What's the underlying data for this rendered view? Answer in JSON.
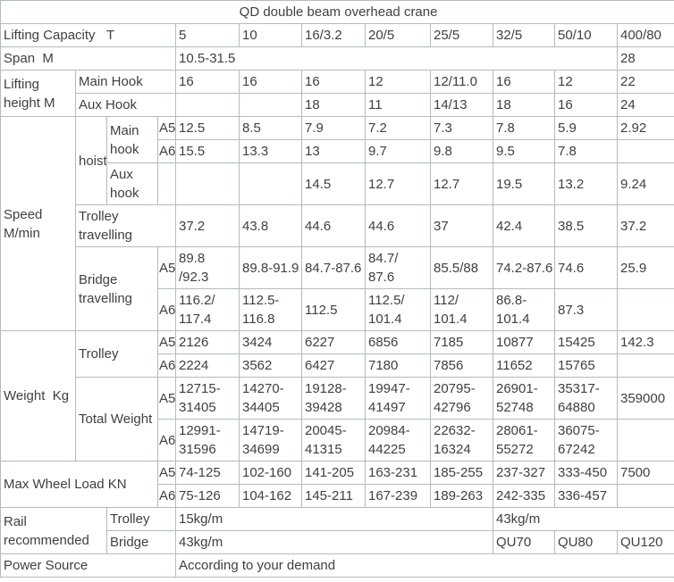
{
  "colors": {
    "border": "#b2bac2",
    "text": "#3f3f3f",
    "background": "#ffffff"
  },
  "table": {
    "title": "QD double beam overhead crane",
    "rows": [
      {
        "cells": [
          {
            "t": "QD double beam overhead crane",
            "cs": 12,
            "cls": "c",
            "n": "table-title"
          }
        ]
      },
      {
        "cells": [
          {
            "t": "Lifting Capacity   T",
            "cs": 4,
            "n": "row-label-lifting-capacity"
          },
          {
            "t": "5"
          },
          {
            "t": "10"
          },
          {
            "t": "16/3.2"
          },
          {
            "t": "20/5"
          },
          {
            "t": "25/5"
          },
          {
            "t": "32/5"
          },
          {
            "t": "50/10"
          },
          {
            "t": "400/80"
          }
        ]
      },
      {
        "cells": [
          {
            "t": "Span  M",
            "cs": 4,
            "n": "row-label-span"
          },
          {
            "t": "10.5-31.5",
            "cs": 7
          },
          {
            "t": "28"
          }
        ]
      },
      {
        "cells": [
          {
            "t": "Lifting\nheight M",
            "rs": 2,
            "n": "row-label-lifting-height"
          },
          {
            "t": "Main Hook",
            "cs": 3,
            "n": "row-label-main-hook"
          },
          {
            "t": "16"
          },
          {
            "t": "16"
          },
          {
            "t": "16"
          },
          {
            "t": "12"
          },
          {
            "t": "12/11.0"
          },
          {
            "t": "16"
          },
          {
            "t": "12"
          },
          {
            "t": "22"
          }
        ]
      },
      {
        "cells": [
          {
            "t": "Aux Hook",
            "cs": 3,
            "n": "row-label-aux-hook"
          },
          {
            "t": ""
          },
          {
            "t": ""
          },
          {
            "t": "18"
          },
          {
            "t": "11"
          },
          {
            "t": "14/13"
          },
          {
            "t": "18"
          },
          {
            "t": "16"
          },
          {
            "t": "24"
          }
        ]
      },
      {
        "cells": [
          {
            "t": "Speed\nM/min",
            "rs": 6,
            "n": "row-label-speed"
          },
          {
            "t": "hoist",
            "rs": 3,
            "n": "row-label-hoist"
          },
          {
            "t": "Main\nhook",
            "rs": 2,
            "n": "row-label-hoist-main-hook"
          },
          {
            "t": "A5",
            "cls": "g",
            "n": "grade-label"
          },
          {
            "t": "12.5"
          },
          {
            "t": "8.5"
          },
          {
            "t": "7.9"
          },
          {
            "t": "7.2"
          },
          {
            "t": "7.3"
          },
          {
            "t": "7.8"
          },
          {
            "t": "5.9"
          },
          {
            "t": "2.92"
          }
        ]
      },
      {
        "cells": [
          {
            "t": "A6",
            "cls": "g",
            "n": "grade-label"
          },
          {
            "t": "15.5"
          },
          {
            "t": "13.3"
          },
          {
            "t": "13"
          },
          {
            "t": "9.7"
          },
          {
            "t": "9.8"
          },
          {
            "t": "9.5"
          },
          {
            "t": "7.8"
          },
          {
            "t": ""
          }
        ]
      },
      {
        "cells": [
          {
            "t": "Aux\nhook",
            "n": "row-label-hoist-aux-hook"
          },
          {
            "t": "",
            "cls": "g"
          },
          {
            "t": ""
          },
          {
            "t": ""
          },
          {
            "t": "14.5"
          },
          {
            "t": "12.7"
          },
          {
            "t": "12.7"
          },
          {
            "t": "19.5"
          },
          {
            "t": "13.2"
          },
          {
            "t": "9.24"
          }
        ]
      },
      {
        "cells": [
          {
            "t": "Trolley\ntravelling",
            "cs": 3,
            "n": "row-label-trolley-travelling"
          },
          {
            "t": "37.2"
          },
          {
            "t": "43.8"
          },
          {
            "t": "44.6"
          },
          {
            "t": "44.6"
          },
          {
            "t": "37"
          },
          {
            "t": "42.4"
          },
          {
            "t": "38.5"
          },
          {
            "t": "37.2"
          }
        ]
      },
      {
        "cells": [
          {
            "t": "Bridge\ntravelling",
            "cs": 2,
            "rs": 2,
            "n": "row-label-bridge-travelling"
          },
          {
            "t": "A5",
            "cls": "g",
            "n": "grade-label"
          },
          {
            "t": "89.8\n/92.3"
          },
          {
            "t": "89.8-91.9"
          },
          {
            "t": "84.7-87.6"
          },
          {
            "t": "84.7/\n87.6"
          },
          {
            "t": "85.5/88"
          },
          {
            "t": "74.2-87.6"
          },
          {
            "t": "74.6"
          },
          {
            "t": "25.9"
          }
        ]
      },
      {
        "cells": [
          {
            "t": "A6",
            "cls": "g",
            "n": "grade-label"
          },
          {
            "t": "116.2/\n117.4"
          },
          {
            "t": "112.5-\n116.8"
          },
          {
            "t": "112.5"
          },
          {
            "t": "112.5/\n101.4"
          },
          {
            "t": "112/\n101.4"
          },
          {
            "t": "86.8-\n101.4"
          },
          {
            "t": "87.3"
          },
          {
            "t": ""
          }
        ]
      },
      {
        "cells": [
          {
            "t": "Weight  Kg",
            "rs": 4,
            "n": "row-label-weight"
          },
          {
            "t": "Trolley",
            "cs": 2,
            "rs": 2,
            "n": "row-label-weight-trolley"
          },
          {
            "t": "A5",
            "cls": "g",
            "n": "grade-label"
          },
          {
            "t": "2126"
          },
          {
            "t": "3424"
          },
          {
            "t": "6227"
          },
          {
            "t": "6856"
          },
          {
            "t": "7185"
          },
          {
            "t": "10877"
          },
          {
            "t": "15425"
          },
          {
            "t": "142.3"
          }
        ]
      },
      {
        "cells": [
          {
            "t": "A6",
            "cls": "g",
            "n": "grade-label"
          },
          {
            "t": "2224"
          },
          {
            "t": "3562"
          },
          {
            "t": "6427"
          },
          {
            "t": "7180"
          },
          {
            "t": "7856"
          },
          {
            "t": "11652"
          },
          {
            "t": "15765"
          },
          {
            "t": ""
          }
        ]
      },
      {
        "cells": [
          {
            "t": "Total Weight",
            "cs": 2,
            "rs": 2,
            "n": "row-label-total-weight"
          },
          {
            "t": "A5",
            "cls": "g",
            "n": "grade-label"
          },
          {
            "t": "12715-\n31405"
          },
          {
            "t": "14270-\n34405"
          },
          {
            "t": "19128-\n39428"
          },
          {
            "t": "19947-\n41497"
          },
          {
            "t": "20795-\n42796"
          },
          {
            "t": "26901-\n52748"
          },
          {
            "t": "35317-\n64880"
          },
          {
            "t": "359000"
          }
        ]
      },
      {
        "cells": [
          {
            "t": "A6",
            "cls": "g",
            "n": "grade-label"
          },
          {
            "t": "12991-\n31596"
          },
          {
            "t": "14719-\n34699"
          },
          {
            "t": "20045-\n41315"
          },
          {
            "t": "20984-\n44225"
          },
          {
            "t": "22632-\n16324"
          },
          {
            "t": "28061-\n55272"
          },
          {
            "t": "36075-\n67242"
          },
          {
            "t": ""
          }
        ]
      },
      {
        "cells": [
          {
            "t": "Max Wheel Load KN",
            "cs": 3,
            "rs": 2,
            "n": "row-label-max-wheel-load"
          },
          {
            "t": "A5",
            "cls": "g",
            "n": "grade-label"
          },
          {
            "t": "74-125"
          },
          {
            "t": "102-160"
          },
          {
            "t": "141-205"
          },
          {
            "t": "163-231"
          },
          {
            "t": "185-255"
          },
          {
            "t": "237-327"
          },
          {
            "t": "333-450"
          },
          {
            "t": "7500"
          }
        ]
      },
      {
        "cells": [
          {
            "t": "A6",
            "cls": "g",
            "n": "grade-label"
          },
          {
            "t": "75-126"
          },
          {
            "t": "104-162"
          },
          {
            "t": "145-211"
          },
          {
            "t": "167-239"
          },
          {
            "t": "189-263"
          },
          {
            "t": "242-335"
          },
          {
            "t": "336-457"
          },
          {
            "t": ""
          }
        ]
      },
      {
        "cells": [
          {
            "t": "Rail\nrecommended",
            "cs": 2,
            "rs": 2,
            "n": "row-label-rail-recommended"
          },
          {
            "t": "Trolley",
            "cs": 2,
            "n": "row-label-rail-trolley"
          },
          {
            "t": "15kg/m",
            "cs": 5
          },
          {
            "t": "43kg/m",
            "cs": 3
          }
        ]
      },
      {
        "cells": [
          {
            "t": "Bridge",
            "cs": 2,
            "n": "row-label-rail-bridge"
          },
          {
            "t": "43kg/m",
            "cs": 5
          },
          {
            "t": "QU70"
          },
          {
            "t": "QU80"
          },
          {
            "t": "QU120"
          }
        ]
      },
      {
        "cells": [
          {
            "t": "Power Source",
            "cs": 4,
            "n": "row-label-power-source"
          },
          {
            "t": "According to your demand",
            "cs": 8
          }
        ]
      }
    ]
  }
}
